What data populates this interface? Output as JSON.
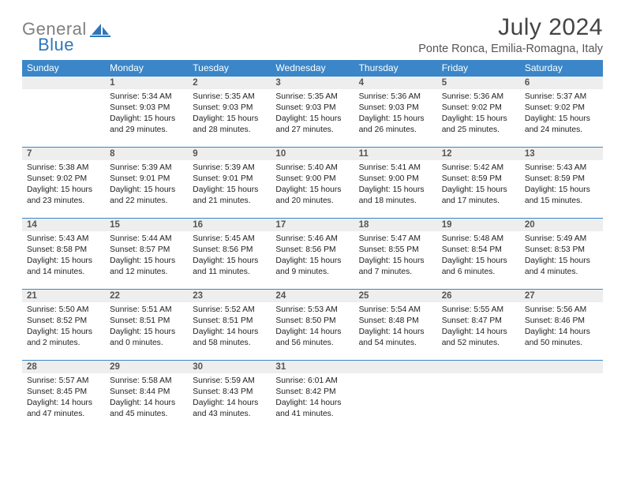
{
  "brand": {
    "gray": "General",
    "blue": "Blue"
  },
  "title": "July 2024",
  "location": "Ponte Ronca, Emilia-Romagna, Italy",
  "colors": {
    "header_bg": "#3a86c8",
    "header_fg": "#ffffff",
    "daynum_bg": "#eeeeee",
    "row_border": "#3a86c8",
    "brand_gray": "#808080",
    "brand_blue": "#2d77b8"
  },
  "weekdays": [
    "Sunday",
    "Monday",
    "Tuesday",
    "Wednesday",
    "Thursday",
    "Friday",
    "Saturday"
  ],
  "weeks": [
    [
      null,
      {
        "n": "1",
        "sr": "5:34 AM",
        "ss": "9:03 PM",
        "dl": "15 hours and 29 minutes."
      },
      {
        "n": "2",
        "sr": "5:35 AM",
        "ss": "9:03 PM",
        "dl": "15 hours and 28 minutes."
      },
      {
        "n": "3",
        "sr": "5:35 AM",
        "ss": "9:03 PM",
        "dl": "15 hours and 27 minutes."
      },
      {
        "n": "4",
        "sr": "5:36 AM",
        "ss": "9:03 PM",
        "dl": "15 hours and 26 minutes."
      },
      {
        "n": "5",
        "sr": "5:36 AM",
        "ss": "9:02 PM",
        "dl": "15 hours and 25 minutes."
      },
      {
        "n": "6",
        "sr": "5:37 AM",
        "ss": "9:02 PM",
        "dl": "15 hours and 24 minutes."
      }
    ],
    [
      {
        "n": "7",
        "sr": "5:38 AM",
        "ss": "9:02 PM",
        "dl": "15 hours and 23 minutes."
      },
      {
        "n": "8",
        "sr": "5:39 AM",
        "ss": "9:01 PM",
        "dl": "15 hours and 22 minutes."
      },
      {
        "n": "9",
        "sr": "5:39 AM",
        "ss": "9:01 PM",
        "dl": "15 hours and 21 minutes."
      },
      {
        "n": "10",
        "sr": "5:40 AM",
        "ss": "9:00 PM",
        "dl": "15 hours and 20 minutes."
      },
      {
        "n": "11",
        "sr": "5:41 AM",
        "ss": "9:00 PM",
        "dl": "15 hours and 18 minutes."
      },
      {
        "n": "12",
        "sr": "5:42 AM",
        "ss": "8:59 PM",
        "dl": "15 hours and 17 minutes."
      },
      {
        "n": "13",
        "sr": "5:43 AM",
        "ss": "8:59 PM",
        "dl": "15 hours and 15 minutes."
      }
    ],
    [
      {
        "n": "14",
        "sr": "5:43 AM",
        "ss": "8:58 PM",
        "dl": "15 hours and 14 minutes."
      },
      {
        "n": "15",
        "sr": "5:44 AM",
        "ss": "8:57 PM",
        "dl": "15 hours and 12 minutes."
      },
      {
        "n": "16",
        "sr": "5:45 AM",
        "ss": "8:56 PM",
        "dl": "15 hours and 11 minutes."
      },
      {
        "n": "17",
        "sr": "5:46 AM",
        "ss": "8:56 PM",
        "dl": "15 hours and 9 minutes."
      },
      {
        "n": "18",
        "sr": "5:47 AM",
        "ss": "8:55 PM",
        "dl": "15 hours and 7 minutes."
      },
      {
        "n": "19",
        "sr": "5:48 AM",
        "ss": "8:54 PM",
        "dl": "15 hours and 6 minutes."
      },
      {
        "n": "20",
        "sr": "5:49 AM",
        "ss": "8:53 PM",
        "dl": "15 hours and 4 minutes."
      }
    ],
    [
      {
        "n": "21",
        "sr": "5:50 AM",
        "ss": "8:52 PM",
        "dl": "15 hours and 2 minutes."
      },
      {
        "n": "22",
        "sr": "5:51 AM",
        "ss": "8:51 PM",
        "dl": "15 hours and 0 minutes."
      },
      {
        "n": "23",
        "sr": "5:52 AM",
        "ss": "8:51 PM",
        "dl": "14 hours and 58 minutes."
      },
      {
        "n": "24",
        "sr": "5:53 AM",
        "ss": "8:50 PM",
        "dl": "14 hours and 56 minutes."
      },
      {
        "n": "25",
        "sr": "5:54 AM",
        "ss": "8:48 PM",
        "dl": "14 hours and 54 minutes."
      },
      {
        "n": "26",
        "sr": "5:55 AM",
        "ss": "8:47 PM",
        "dl": "14 hours and 52 minutes."
      },
      {
        "n": "27",
        "sr": "5:56 AM",
        "ss": "8:46 PM",
        "dl": "14 hours and 50 minutes."
      }
    ],
    [
      {
        "n": "28",
        "sr": "5:57 AM",
        "ss": "8:45 PM",
        "dl": "14 hours and 47 minutes."
      },
      {
        "n": "29",
        "sr": "5:58 AM",
        "ss": "8:44 PM",
        "dl": "14 hours and 45 minutes."
      },
      {
        "n": "30",
        "sr": "5:59 AM",
        "ss": "8:43 PM",
        "dl": "14 hours and 43 minutes."
      },
      {
        "n": "31",
        "sr": "6:01 AM",
        "ss": "8:42 PM",
        "dl": "14 hours and 41 minutes."
      },
      null,
      null,
      null
    ]
  ],
  "labels": {
    "sunrise": "Sunrise:",
    "sunset": "Sunset:",
    "daylight": "Daylight:"
  }
}
